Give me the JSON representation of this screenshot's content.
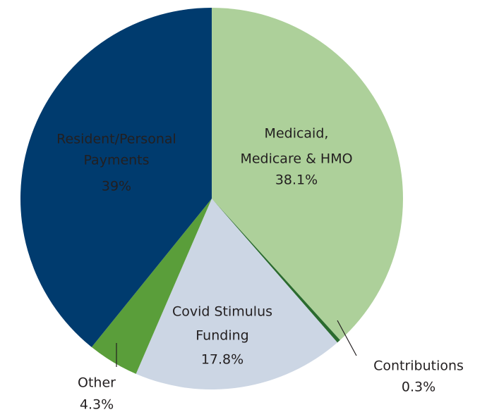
{
  "chart_data": {
    "type": "pie",
    "categories": [
      [
        "Medicaid,",
        "Medicare & HMO"
      ],
      [
        "Contributions"
      ],
      [
        "Covid Stimulus",
        "Funding"
      ],
      [
        "Other"
      ],
      [
        "Resident/Personal",
        "Payments"
      ]
    ],
    "values": [
      38.1,
      0.3,
      17.8,
      4.3,
      39
    ],
    "value_labels": [
      "38.1%",
      "0.3%",
      "17.8%",
      "4.3%",
      "39%"
    ],
    "colors": [
      "#add09a",
      "#2b6b2f",
      "#ccd6e4",
      "#5a9e3a",
      "#003b6e"
    ]
  }
}
